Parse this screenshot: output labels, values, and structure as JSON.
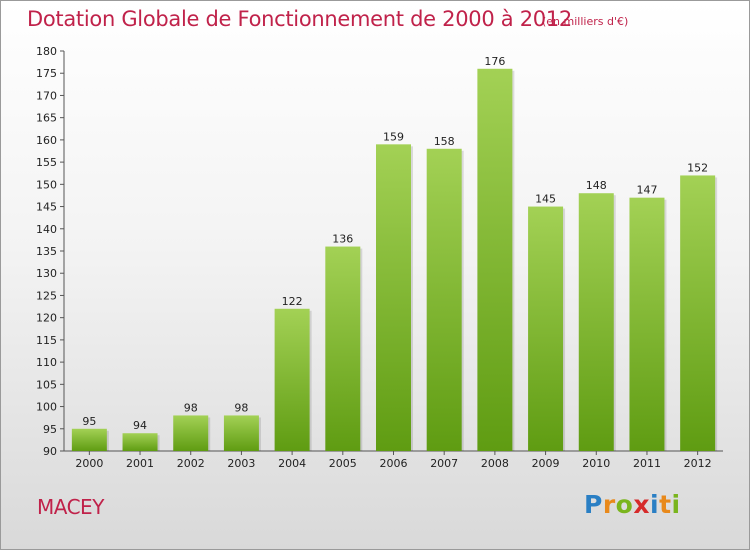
{
  "header": {
    "title": "Dotation Globale de Fonctionnement de 2000 à 2012",
    "subtitle": "(en milliers d'€)"
  },
  "footer": {
    "commune": "MACEY",
    "logo_letters": [
      "P",
      "r",
      "o",
      "x",
      "i",
      "t",
      "i"
    ],
    "logo_colors": [
      "#2a7fc4",
      "#e8891b",
      "#7ab51d",
      "#d62b2b",
      "#2a7fc4",
      "#e8891b",
      "#7ab51d"
    ]
  },
  "chart_data": {
    "type": "bar",
    "categories": [
      "2000",
      "2001",
      "2002",
      "2003",
      "2004",
      "2005",
      "2006",
      "2007",
      "2008",
      "2009",
      "2010",
      "2011",
      "2012"
    ],
    "values": [
      95,
      94,
      98,
      98,
      122,
      136,
      159,
      158,
      176,
      145,
      148,
      147,
      152
    ],
    "ylim": [
      90,
      180
    ],
    "yticks": [
      90,
      95,
      100,
      105,
      110,
      115,
      120,
      125,
      130,
      135,
      140,
      145,
      150,
      155,
      160,
      165,
      170,
      175,
      180
    ],
    "grid": false,
    "bar_color_top": "#a3d155",
    "bar_color_bottom": "#5f9c12",
    "title": "Dotation Globale de Fonctionnement de 2000 à 2012",
    "xlabel": "",
    "ylabel": ""
  }
}
